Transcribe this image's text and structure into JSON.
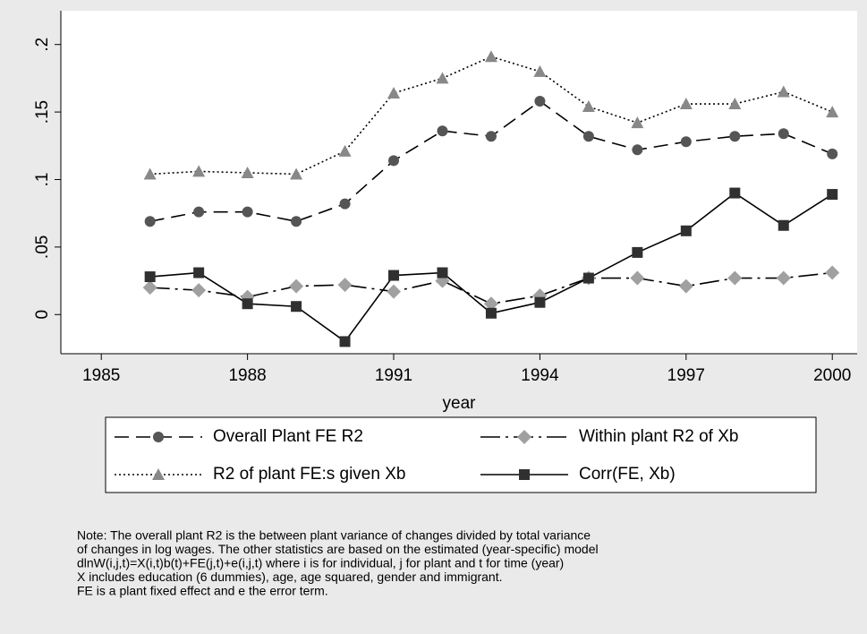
{
  "chart_data": {
    "type": "line",
    "x_label": "year",
    "x": [
      1986,
      1987,
      1988,
      1989,
      1990,
      1991,
      1992,
      1993,
      1994,
      1995,
      1996,
      1997,
      1998,
      1999,
      2000
    ],
    "xlim": [
      1984.17,
      2000.51
    ],
    "xticks": [
      1985,
      1988,
      1991,
      1994,
      1997,
      2000
    ],
    "ylim": [
      -0.029,
      0.225
    ],
    "yticks": [
      0,
      {
        "value": 0.05,
        "label": ".05"
      },
      {
        "value": 0.1,
        "label": ".1"
      },
      {
        "value": 0.15,
        "label": ".15"
      },
      {
        "value": 0.2,
        "label": ".2"
      }
    ],
    "series": [
      {
        "name": "Overall Plant FE R2",
        "color": "#555555",
        "line_color": "#000000",
        "dash": "16,8",
        "marker": "circle",
        "values": [
          0.069,
          0.076,
          0.076,
          0.069,
          0.082,
          0.114,
          0.136,
          0.132,
          0.158,
          0.132,
          0.122,
          0.128,
          0.132,
          0.134,
          0.119
        ]
      },
      {
        "name": "Within plant R2 of Xb",
        "color": "#a0a0a0",
        "line_color": "#000000",
        "dash": "22,6,3,6",
        "marker": "diamond",
        "values": [
          0.02,
          0.018,
          0.013,
          0.021,
          0.022,
          0.017,
          0.025,
          0.008,
          0.014,
          0.027,
          0.027,
          0.021,
          0.027,
          0.027,
          0.031
        ]
      },
      {
        "name": "R2 of plant FE:s given Xb",
        "color": "#888888",
        "line_color": "#000000",
        "dash": "2,3",
        "marker": "triangle",
        "values": [
          0.104,
          0.106,
          0.105,
          0.104,
          0.121,
          0.164,
          0.175,
          0.191,
          0.18,
          0.154,
          0.142,
          0.156,
          0.156,
          0.165,
          0.15
        ]
      },
      {
        "name": "Corr(FE, Xb)",
        "color": "#303030",
        "line_color": "#000000",
        "dash": "none",
        "marker": "square",
        "values": [
          0.028,
          0.031,
          0.008,
          0.006,
          -0.02,
          0.029,
          0.031,
          0.001,
          0.009,
          0.027,
          0.046,
          0.062,
          0.09,
          0.066,
          0.089
        ]
      }
    ],
    "note": [
      "Note: The overall plant R2 is the between plant variance of changes divided by total variance",
      "of changes in log wages. The other statistics are based on the estimated (year-specific) model",
      "dlnW(i,j,t)=X(i,t)b(t)+FE(j,t)+e(i,j,t) where i is for individual, j for plant and t for time (year)",
      "X includes education (6 dummies), age, age squared, gender and immigrant.",
      "FE is a plant fixed effect and e the error term."
    ]
  }
}
